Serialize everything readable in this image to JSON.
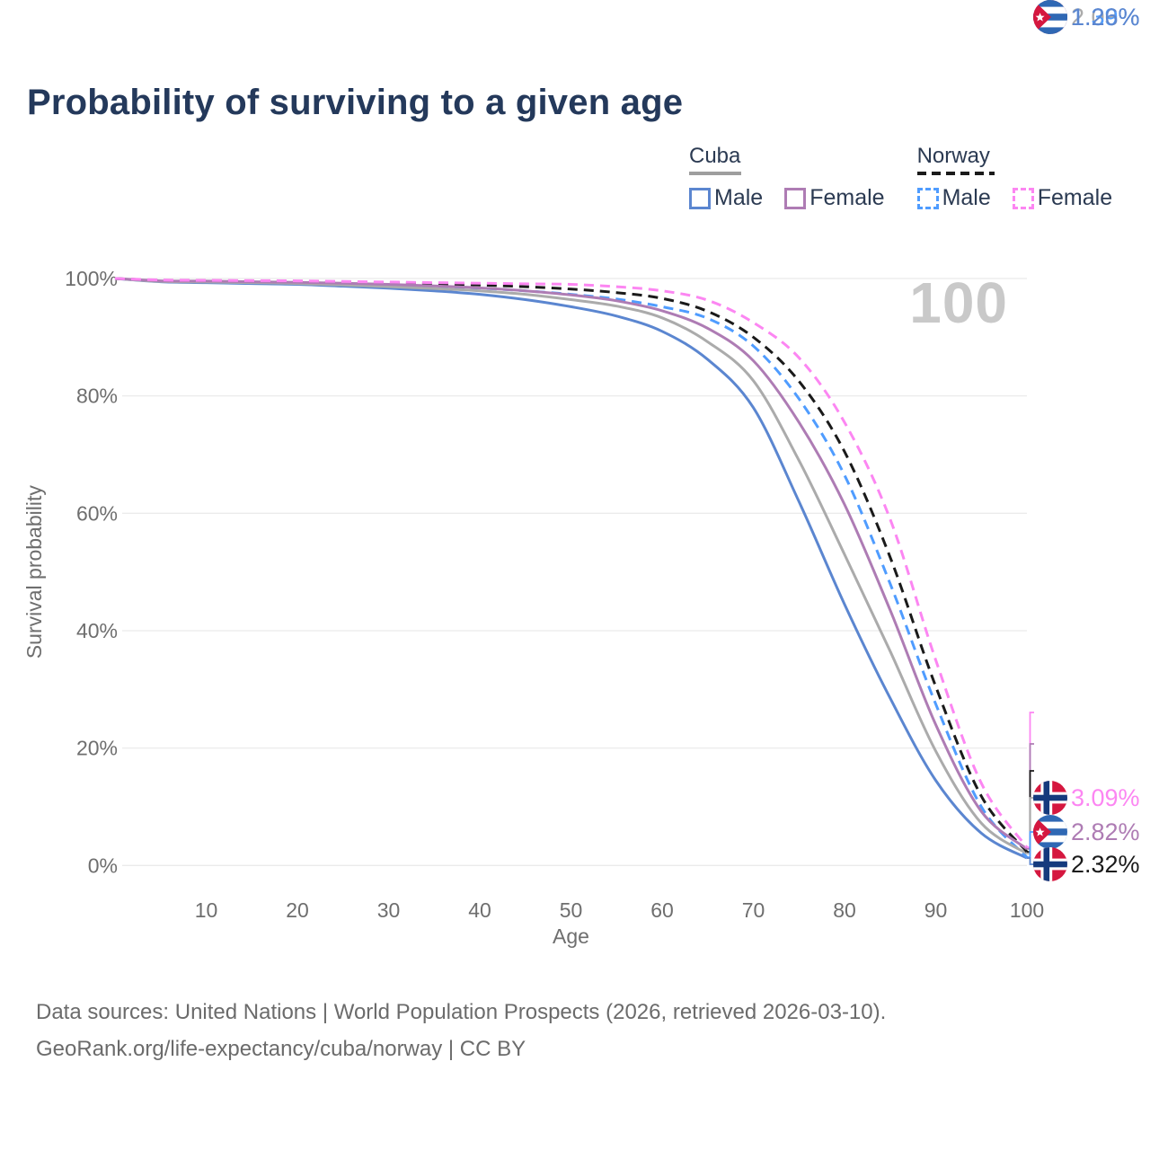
{
  "header": {
    "title": "Probability of surviving to a given age"
  },
  "chart": {
    "age_indicator": "100"
  },
  "legend": {
    "groups": [
      {
        "label": "Cuba",
        "line_style": "solid",
        "underline_color": "#9e9e9e",
        "items": [
          {
            "label": "Male",
            "color": "#5b86d0",
            "line_style": "solid"
          },
          {
            "label": "Female",
            "color": "#ae7cb4",
            "line_style": "solid"
          }
        ]
      },
      {
        "label": "Norway",
        "line_style": "dashed",
        "underline_color": "#1a1a1a",
        "items": [
          {
            "label": "Male",
            "color": "#4f9cff",
            "line_style": "dashed"
          },
          {
            "label": "Female",
            "color": "#fc86f2",
            "line_style": "dashed"
          }
        ]
      }
    ]
  },
  "chart_data": {
    "type": "line",
    "title": "Probability of surviving to a given age",
    "xlabel": "Age",
    "ylabel": "Survival probability",
    "xlim": [
      0,
      100
    ],
    "ylim": [
      0,
      100
    ],
    "x_ticks": [
      10,
      20,
      30,
      40,
      50,
      60,
      70,
      80,
      90,
      100
    ],
    "y_ticks": [
      0,
      20,
      40,
      60,
      80,
      100
    ],
    "y_tick_labels": [
      "0%",
      "20%",
      "40%",
      "60%",
      "80%",
      "100%"
    ],
    "grid": "horizontal",
    "legend_position": "top-right",
    "hover_age": 100,
    "x": [
      0,
      5,
      10,
      15,
      20,
      25,
      30,
      35,
      40,
      45,
      50,
      55,
      60,
      65,
      70,
      75,
      80,
      85,
      90,
      95,
      100
    ],
    "series": [
      {
        "name": "Norway Female",
        "country": "Norway",
        "sex": "female",
        "color": "#fc86f2",
        "dash": true,
        "muted": false,
        "end_label": "3.09%",
        "values": [
          100,
          99.75,
          99.7,
          99.65,
          99.6,
          99.5,
          99.4,
          99.3,
          99.2,
          99.1,
          99.0,
          98.6,
          97.9,
          96.3,
          92.5,
          86.5,
          75.5,
          59,
          35,
          14,
          3.09
        ]
      },
      {
        "name": "Cuba Female",
        "country": "Cuba",
        "sex": "female",
        "color": "#ae7cb4",
        "dash": false,
        "muted": false,
        "end_label": "2.82%",
        "values": [
          100,
          99.6,
          99.55,
          99.45,
          99.35,
          99.2,
          99.0,
          98.75,
          98.4,
          97.9,
          97.2,
          96.2,
          94.5,
          91.5,
          86.0,
          75.5,
          61.5,
          43.5,
          24,
          9.2,
          2.82
        ]
      },
      {
        "name": "Norway (both sexes)",
        "country": "Norway",
        "sex": "both",
        "color": "#1a1a1a",
        "dash": true,
        "muted": false,
        "end_label": "2.32%",
        "values": [
          100,
          99.7,
          99.6,
          99.55,
          99.5,
          99.4,
          99.3,
          99.1,
          98.9,
          98.6,
          98.2,
          97.6,
          96.6,
          94.4,
          90.0,
          82.5,
          70.5,
          52.5,
          30.5,
          11.8,
          2.32
        ]
      },
      {
        "name": "Cuba (both sexes)",
        "country": "Cuba",
        "sex": "both",
        "color": "#ababab",
        "dash": false,
        "muted": true,
        "end_label": "2.03%",
        "values": [
          100,
          99.5,
          99.4,
          99.3,
          99.15,
          98.9,
          98.6,
          98.3,
          97.9,
          97.3,
          96.4,
          95.3,
          93.3,
          89.2,
          82.6,
          69.0,
          53.0,
          36.5,
          19.5,
          7.2,
          2.03
        ]
      },
      {
        "name": "Norway Male",
        "country": "Norway",
        "sex": "male",
        "color": "#4f9cff",
        "dash": true,
        "muted": false,
        "end_label": "1.39%",
        "values": [
          100,
          99.6,
          99.5,
          99.4,
          99.3,
          99.1,
          98.9,
          98.65,
          98.35,
          97.9,
          97.3,
          96.5,
          95.2,
          93.2,
          88.5,
          79.5,
          66.5,
          48,
          27.5,
          10,
          1.39
        ]
      },
      {
        "name": "Cuba Male",
        "country": "Cuba",
        "sex": "male",
        "color": "#5b86d0",
        "dash": false,
        "muted": false,
        "end_label": "1.26%",
        "values": [
          100,
          99.45,
          99.3,
          99.15,
          99.0,
          98.7,
          98.35,
          97.9,
          97.3,
          96.4,
          95.2,
          93.6,
          91.0,
          86.2,
          78.0,
          62.0,
          44.5,
          28.5,
          14.5,
          5.5,
          1.26
        ]
      }
    ]
  },
  "footer": {
    "line1": "Data sources: United Nations | World Population Prospects (2026, retrieved 2026-03-10).",
    "line2": "GeoRank.org/life-expectancy/cuba/norway | CC BY"
  }
}
